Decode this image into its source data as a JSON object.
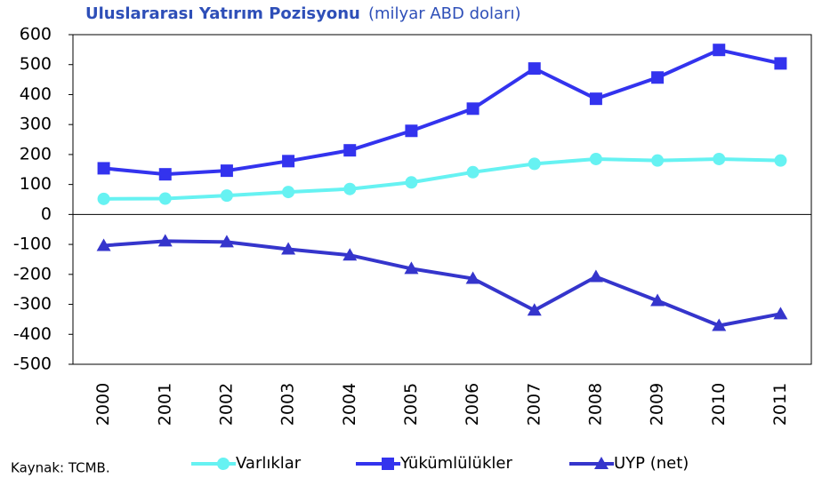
{
  "chart_data": {
    "type": "line",
    "title": "Uluslararası Yatırım Pozisyonu",
    "subtitle": "(milyar ABD doları)",
    "source": "Kaynak: TCMB.",
    "categories": [
      "2000",
      "2001",
      "2002",
      "2003",
      "2004",
      "2005",
      "2006",
      "2007",
      "2008",
      "2009",
      "2010",
      "2011"
    ],
    "series": [
      {
        "name": "Varlıklar",
        "color": "#66f2f2",
        "marker": "circle",
        "values": [
          52,
          53,
          63,
          75,
          85,
          107,
          141,
          169,
          185,
          180,
          185,
          180
        ]
      },
      {
        "name": "Yükümlülükler",
        "color": "#3333ee",
        "marker": "square",
        "values": [
          154,
          134,
          146,
          178,
          214,
          279,
          353,
          487,
          386,
          457,
          549,
          504
        ]
      },
      {
        "name": "UYP (net)",
        "color": "#3535cc",
        "marker": "triangle",
        "values": [
          -104,
          -89,
          -92,
          -116,
          -136,
          -181,
          -214,
          -320,
          -208,
          -288,
          -371,
          -332
        ]
      }
    ],
    "ylim": [
      -500,
      600
    ],
    "yticks": [
      -500,
      -400,
      -300,
      -200,
      -100,
      0,
      100,
      200,
      300,
      400,
      500,
      600
    ],
    "legend": "bottom"
  }
}
